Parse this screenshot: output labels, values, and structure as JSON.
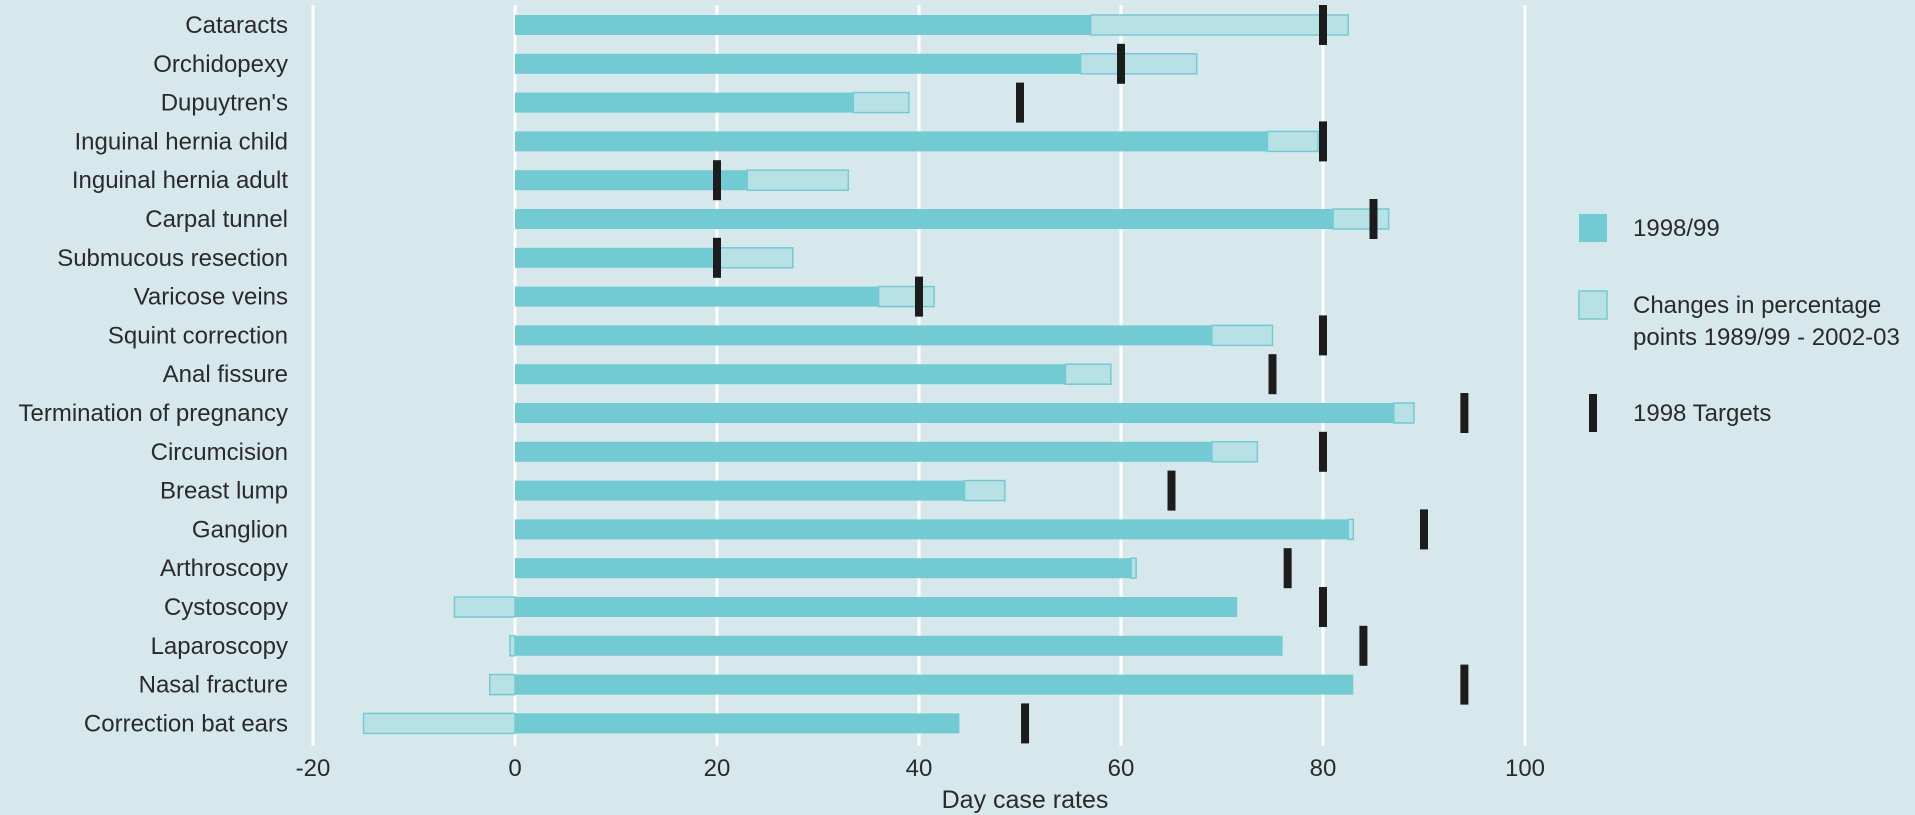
{
  "chart_data": {
    "type": "bar",
    "orientation": "horizontal",
    "xlabel": "Day case rates",
    "xlim": [
      -20,
      100
    ],
    "xticks": [
      -20,
      0,
      20,
      40,
      60,
      80,
      100
    ],
    "grid": true,
    "legend_position": "right",
    "categories": [
      "Cataracts",
      "Orchidopexy",
      "Dupuytren's",
      "Inguinal hernia child",
      "Inguinal hernia adult",
      "Carpal tunnel",
      "Submucous resection",
      "Varicose veins",
      "Squint correction",
      "Anal fissure",
      "Termination of pregnancy",
      "Circumcision",
      "Breast lump",
      "Ganglion",
      "Arthroscopy",
      "Cystoscopy",
      "Laparoscopy",
      "Nasal fracture",
      "Correction bat ears"
    ],
    "series": [
      {
        "name": "1998/99",
        "values": [
          57,
          56,
          33.5,
          74.5,
          23,
          81,
          20,
          36,
          69,
          54.5,
          87,
          69,
          44.5,
          82.5,
          61,
          71.5,
          76,
          83,
          44
        ]
      },
      {
        "name": "Changes in percentage points 1989/99 - 2002-03",
        "values": [
          25.5,
          11.5,
          5.5,
          5,
          10,
          5.5,
          7.5,
          5.5,
          6,
          4.5,
          2,
          4.5,
          4,
          0.5,
          0.5,
          -6,
          -0.5,
          -2.5,
          -15
        ]
      },
      {
        "name": "1998 Targets",
        "values": [
          80,
          60,
          50,
          80,
          20,
          85,
          20,
          40,
          80,
          75,
          94,
          80,
          65,
          90,
          76.5,
          80,
          84,
          94,
          50.5
        ]
      }
    ],
    "colors": {
      "base": "#72cbd3",
      "change_fill": "#b8e1e6",
      "change_stroke": "#72cbd3",
      "target": "#1c1c1c",
      "grid": "#ffffff",
      "background": "#d6e8ec"
    }
  },
  "legend": {
    "items": [
      {
        "kind": "base",
        "lines": [
          "1998/99"
        ]
      },
      {
        "kind": "change",
        "lines": [
          "Changes in percentage",
          "points 1989/99 - 2002-03"
        ]
      },
      {
        "kind": "target",
        "lines": [
          "1998 Targets"
        ]
      }
    ]
  }
}
